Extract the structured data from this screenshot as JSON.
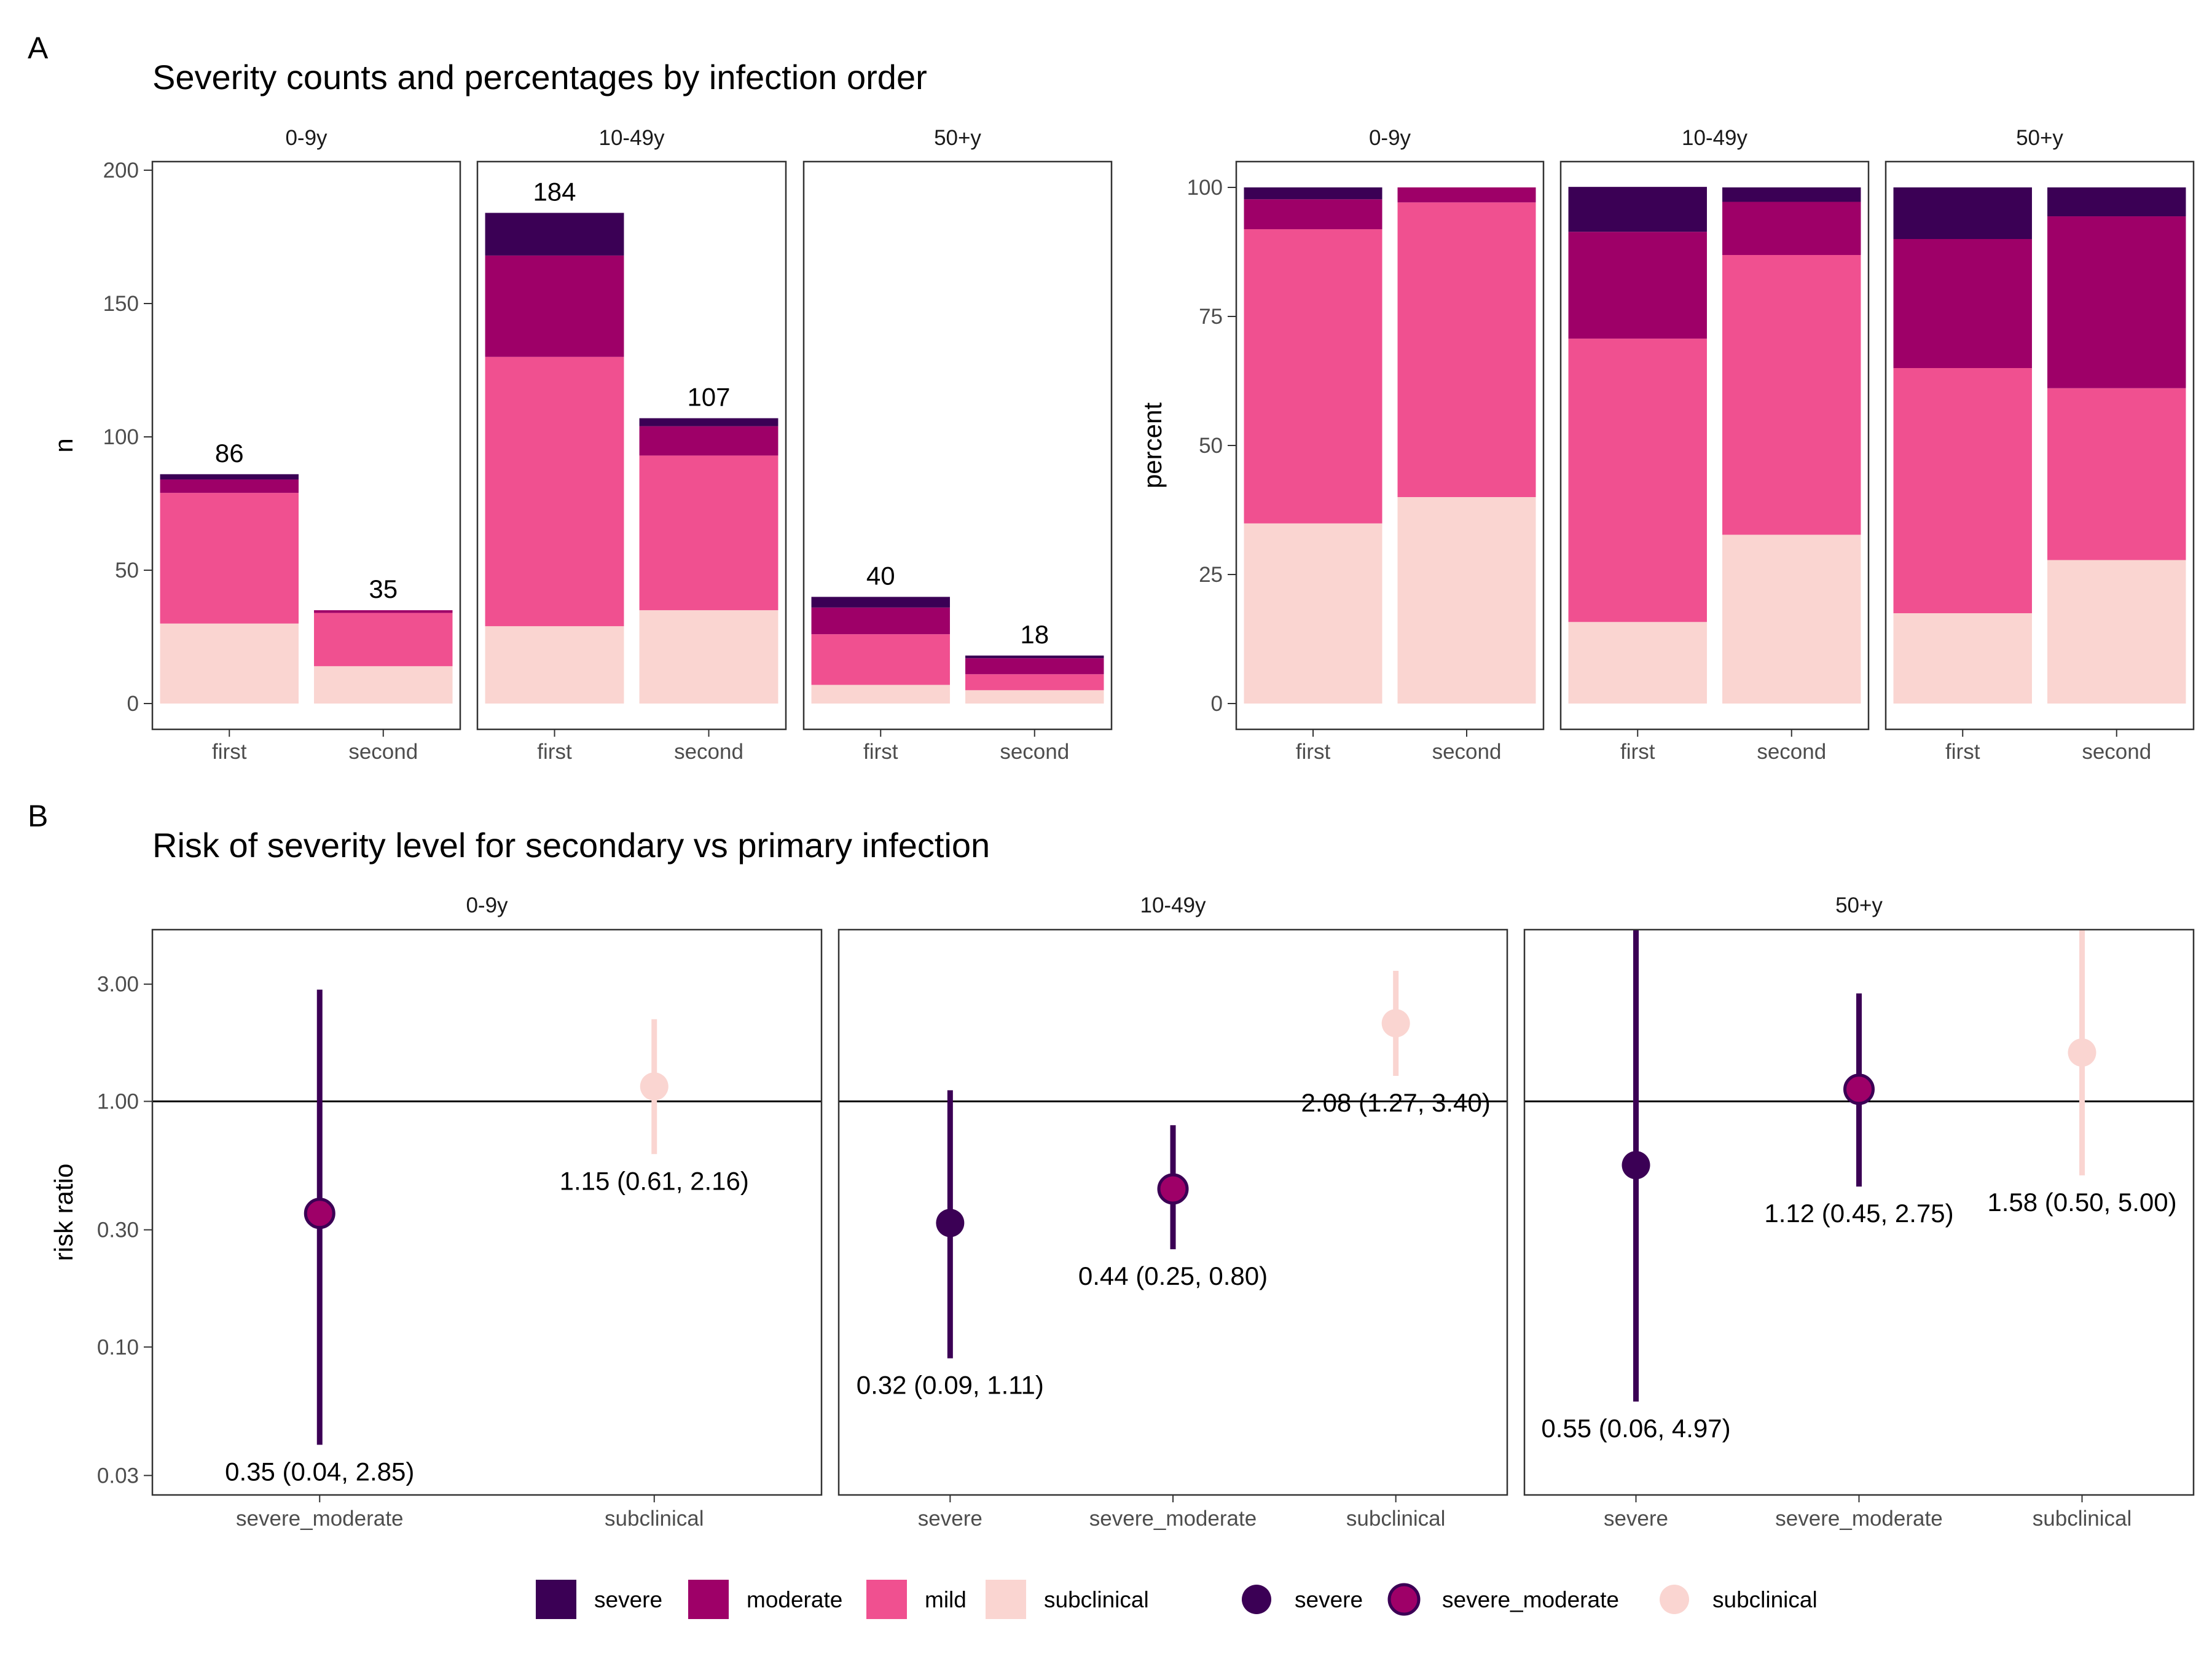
{
  "tags": {
    "a": "A",
    "b": "B"
  },
  "colors": {
    "severe": "#3b0055",
    "moderate": "#9e0068",
    "mild": "#f05090",
    "subclinical": "#fad5d1",
    "severe_moderate_fill": "#9e0068",
    "severe_moderate_stroke": "#3b0055",
    "panel_border": "#333333",
    "reference_line": "#000000"
  },
  "legend": {
    "bars": [
      {
        "label": "severe",
        "key": "severe"
      },
      {
        "label": "moderate",
        "key": "moderate"
      },
      {
        "label": "mild",
        "key": "mild"
      },
      {
        "label": "subclinical",
        "key": "subclinical"
      }
    ],
    "points": [
      {
        "label": "severe",
        "key": "severe"
      },
      {
        "label": "severe_moderate",
        "key": "severe_moderate"
      },
      {
        "label": "subclinical",
        "key": "subclinical"
      }
    ]
  },
  "chart_data": [
    {
      "type": "bar",
      "stacked": true,
      "title": "Severity counts and percentages by infection order",
      "xlabel": "",
      "ylabel": "n",
      "ylim": [
        0,
        200
      ],
      "yticks": [
        0,
        50,
        100,
        150,
        200
      ],
      "series_order": [
        "subclinical",
        "mild",
        "moderate",
        "severe"
      ],
      "facets": [
        {
          "label": "0-9y",
          "categories": [
            "first",
            "second"
          ],
          "totals": [
            86,
            35
          ],
          "series": [
            {
              "name": "subclinical",
              "values": [
                30,
                14
              ]
            },
            {
              "name": "mild",
              "values": [
                49,
                20
              ]
            },
            {
              "name": "moderate",
              "values": [
                5,
                1
              ]
            },
            {
              "name": "severe",
              "values": [
                2,
                0
              ]
            }
          ]
        },
        {
          "label": "10-49y",
          "categories": [
            "first",
            "second"
          ],
          "totals": [
            184,
            107
          ],
          "series": [
            {
              "name": "subclinical",
              "values": [
                29,
                35
              ]
            },
            {
              "name": "mild",
              "values": [
                101,
                58
              ]
            },
            {
              "name": "moderate",
              "values": [
                38,
                11
              ]
            },
            {
              "name": "severe",
              "values": [
                16,
                3
              ]
            }
          ]
        },
        {
          "label": "50+y",
          "categories": [
            "first",
            "second"
          ],
          "totals": [
            40,
            18
          ],
          "series": [
            {
              "name": "subclinical",
              "values": [
                7,
                5
              ]
            },
            {
              "name": "mild",
              "values": [
                19,
                6
              ]
            },
            {
              "name": "moderate",
              "values": [
                10,
                6
              ]
            },
            {
              "name": "severe",
              "values": [
                4,
                1
              ]
            }
          ]
        }
      ]
    },
    {
      "type": "bar",
      "stacked": true,
      "title": "",
      "xlabel": "",
      "ylabel": "percent",
      "ylim": [
        0,
        100
      ],
      "yticks": [
        0,
        25,
        50,
        75,
        100
      ],
      "series_order": [
        "subclinical",
        "mild",
        "moderate",
        "severe"
      ],
      "facets": [
        {
          "label": "0-9y",
          "categories": [
            "first",
            "second"
          ],
          "series": [
            {
              "name": "subclinical",
              "values": [
                34.9,
                40.0
              ]
            },
            {
              "name": "mild",
              "values": [
                57.0,
                57.1
              ]
            },
            {
              "name": "moderate",
              "values": [
                5.8,
                2.9
              ]
            },
            {
              "name": "severe",
              "values": [
                2.3,
                0
              ]
            }
          ]
        },
        {
          "label": "10-49y",
          "categories": [
            "first",
            "second"
          ],
          "series": [
            {
              "name": "subclinical",
              "values": [
                15.8,
                32.7
              ]
            },
            {
              "name": "mild",
              "values": [
                54.9,
                54.2
              ]
            },
            {
              "name": "moderate",
              "values": [
                20.7,
                10.3
              ]
            },
            {
              "name": "severe",
              "values": [
                8.7,
                2.8
              ]
            }
          ]
        },
        {
          "label": "50+y",
          "categories": [
            "first",
            "second"
          ],
          "series": [
            {
              "name": "subclinical",
              "values": [
                17.5,
                27.8
              ]
            },
            {
              "name": "mild",
              "values": [
                47.5,
                33.3
              ]
            },
            {
              "name": "moderate",
              "values": [
                25.0,
                33.3
              ]
            },
            {
              "name": "severe",
              "values": [
                10.0,
                5.6
              ]
            }
          ]
        }
      ]
    },
    {
      "type": "scatter",
      "subtype": "point-range",
      "title": "Risk of severity level for secondary vs primary infection",
      "xlabel": "",
      "ylabel": "risk ratio",
      "yscale": "log",
      "ylim": [
        0.025,
        5
      ],
      "yticks": [
        0.03,
        0.1,
        0.3,
        1.0,
        3.0
      ],
      "ytick_labels": [
        "0.03",
        "0.10",
        "0.30",
        "1.00",
        "3.00"
      ],
      "reference_line": 1.0,
      "facets": [
        {
          "label": "0-9y",
          "categories": [
            "severe_moderate",
            "subclinical"
          ],
          "points": [
            {
              "category": "severe_moderate",
              "estimate": 0.35,
              "lower": 0.04,
              "upper": 2.85,
              "label": "0.35 (0.04, 2.85)"
            },
            {
              "category": "subclinical",
              "estimate": 1.15,
              "lower": 0.61,
              "upper": 2.16,
              "label": "1.15 (0.61, 2.16)"
            }
          ]
        },
        {
          "label": "10-49y",
          "categories": [
            "severe",
            "severe_moderate",
            "subclinical"
          ],
          "points": [
            {
              "category": "severe",
              "estimate": 0.32,
              "lower": 0.09,
              "upper": 1.11,
              "label": "0.32 (0.09, 1.11)"
            },
            {
              "category": "severe_moderate",
              "estimate": 0.44,
              "lower": 0.25,
              "upper": 0.8,
              "label": "0.44 (0.25, 0.80)"
            },
            {
              "category": "subclinical",
              "estimate": 2.08,
              "lower": 1.27,
              "upper": 3.4,
              "label": "2.08 (1.27, 3.40)"
            }
          ]
        },
        {
          "label": "50+y",
          "categories": [
            "severe",
            "severe_moderate",
            "subclinical"
          ],
          "points": [
            {
              "category": "severe",
              "estimate": 0.55,
              "lower": 0.06,
              "upper": 4.97,
              "label": "0.55 (0.06, 4.97)"
            },
            {
              "category": "severe_moderate",
              "estimate": 1.12,
              "lower": 0.45,
              "upper": 2.75,
              "label": "1.12 (0.45, 2.75)"
            },
            {
              "category": "subclinical",
              "estimate": 1.58,
              "lower": 0.5,
              "upper": 5.0,
              "label": "1.58 (0.50, 5.00)"
            }
          ]
        }
      ]
    }
  ]
}
